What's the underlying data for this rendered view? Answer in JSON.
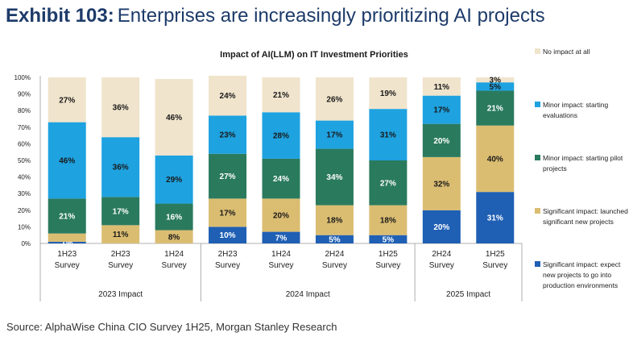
{
  "header": {
    "exhibit_number": "Exhibit 103:",
    "title": "Enterprises are increasingly prioritizing AI projects"
  },
  "source": "Source: AlphaWise China CIO Survey 1H25, Morgan Stanley Research",
  "chart_data": {
    "type": "bar",
    "stacked": true,
    "title": "Impact of AI(LLM) on IT Investment Priorities",
    "ylim": [
      0,
      100
    ],
    "yticks": [
      "0%",
      "10%",
      "20%",
      "30%",
      "40%",
      "50%",
      "60%",
      "70%",
      "80%",
      "90%",
      "100%"
    ],
    "categories": [
      "1H23\nSurvey",
      "2H23\nSurvey",
      "1H24\nSurvey",
      "2H23\nSurvey",
      "1H24\nSurvey",
      "2H24\nSurvey",
      "1H25\nSurvey",
      "2H24\nSurvey",
      "1H25\nSurvey"
    ],
    "groups": [
      {
        "label": "2023 Impact",
        "start": 0,
        "end": 2
      },
      {
        "label": "2024 Impact",
        "start": 3,
        "end": 6
      },
      {
        "label": "2025 Impact",
        "start": 7,
        "end": 8
      }
    ],
    "legend_position": "right",
    "series": [
      {
        "name": "Significant impact: expect new projects to go into production environments",
        "color": "#1f5fb4",
        "text_color": "#ffffff",
        "values": [
          1,
          0,
          0,
          10,
          7,
          5,
          5,
          20,
          31
        ],
        "labels": [
          "1%",
          "",
          "",
          "10%",
          "7%",
          "5%",
          "5%",
          "20%",
          "31%"
        ]
      },
      {
        "name": "Significant impact: launched significant new projects",
        "color": "#dbbd72",
        "text_color": "#1a1a1a",
        "values": [
          5,
          11,
          8,
          17,
          20,
          18,
          18,
          32,
          40
        ],
        "labels": [
          "",
          "11%",
          "8%",
          "17%",
          "20%",
          "18%",
          "18%",
          "32%",
          "40%"
        ]
      },
      {
        "name": "Minor impact: starting pilot projects",
        "color": "#2a7a5e",
        "text_color": "#ffffff",
        "values": [
          21,
          17,
          16,
          27,
          24,
          34,
          27,
          20,
          21
        ],
        "labels": [
          "21%",
          "17%",
          "16%",
          "27%",
          "24%",
          "34%",
          "27%",
          "20%",
          "21%"
        ]
      },
      {
        "name": "Minor impact: starting evaluations",
        "color": "#1ea2e0",
        "text_color": "#1a1a1a",
        "values": [
          46,
          36,
          29,
          23,
          28,
          17,
          31,
          17,
          5
        ],
        "labels": [
          "46%",
          "36%",
          "29%",
          "23%",
          "28%",
          "17%",
          "31%",
          "17%",
          "5%"
        ]
      },
      {
        "name": "No impact at all",
        "color": "#f0e4cc",
        "text_color": "#1a1a1a",
        "values": [
          27,
          36,
          46,
          24,
          21,
          26,
          19,
          11,
          3
        ],
        "labels": [
          "27%",
          "36%",
          "46%",
          "24%",
          "21%",
          "26%",
          "19%",
          "11%",
          "3%"
        ]
      }
    ]
  }
}
